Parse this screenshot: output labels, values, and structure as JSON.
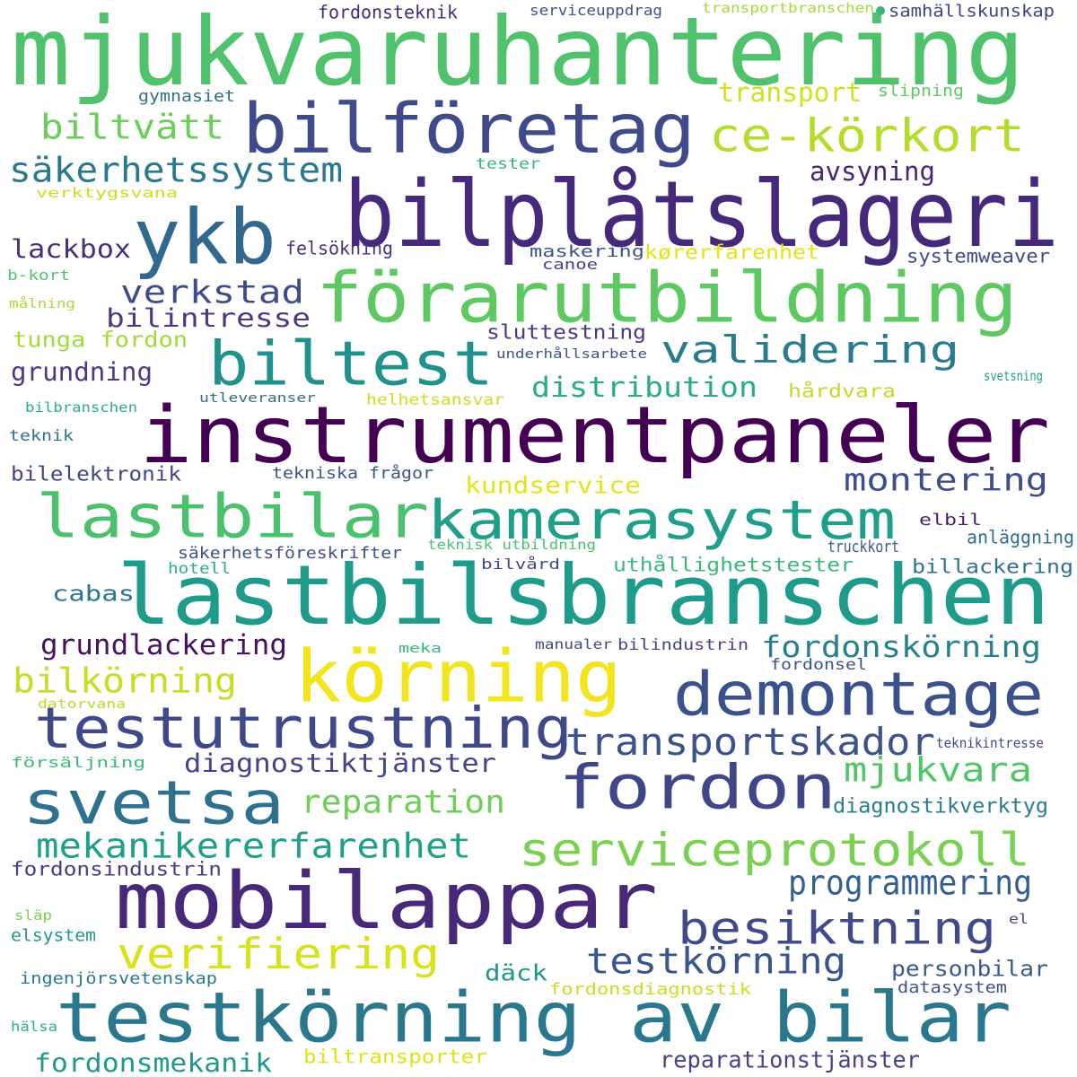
{
  "cloud": {
    "words": [
      {
        "text": "mjukvaruhantering",
        "color": "#4fc26b"
      },
      {
        "text": "bilföretag",
        "color": "#3e4a89"
      },
      {
        "text": "bilplåtslageri",
        "color": "#46297b"
      },
      {
        "text": "ykb",
        "color": "#31688e"
      },
      {
        "text": "ce-körkort",
        "color": "#b4dd2b"
      },
      {
        "text": "förarutbildning",
        "color": "#5ec962"
      },
      {
        "text": "biltest",
        "color": "#21918c"
      },
      {
        "text": "instrumentpaneler",
        "color": "#440154"
      },
      {
        "text": "lastbilar",
        "color": "#4ac16d"
      },
      {
        "text": "kamerasystem",
        "color": "#1f9e89"
      },
      {
        "text": "lastbilsbranschen",
        "color": "#1e9b8a"
      },
      {
        "text": "körning",
        "color": "#f1e51d"
      },
      {
        "text": "demontage",
        "color": "#3b518b"
      },
      {
        "text": "testutrustning",
        "color": "#3e4989"
      },
      {
        "text": "svetsa",
        "color": "#2d718e"
      },
      {
        "text": "fordon",
        "color": "#3f4788"
      },
      {
        "text": "mobilappar",
        "color": "#482878"
      },
      {
        "text": "serviceprotokoll",
        "color": "#7ad151"
      },
      {
        "text": "testkörning av bilar",
        "color": "#2a788e"
      },
      {
        "text": "transportskador",
        "color": "#3b528b"
      },
      {
        "text": "besiktning",
        "color": "#3e4a89"
      },
      {
        "text": "verifiering",
        "color": "#d8e219"
      },
      {
        "text": "säkerhetssystem",
        "color": "#2a788e"
      },
      {
        "text": "verkstad",
        "color": "#3e4c8a"
      },
      {
        "text": "biltvätt",
        "color": "#6ccd5a"
      },
      {
        "text": "validering",
        "color": "#287c8e"
      },
      {
        "text": "montering",
        "color": "#3d4e8a"
      },
      {
        "text": "reparation",
        "color": "#6ece58"
      },
      {
        "text": "mekanikererfarenhet",
        "color": "#1fa088"
      },
      {
        "text": "mjukvara",
        "color": "#52c569"
      },
      {
        "text": "testkörning",
        "color": "#39558c"
      },
      {
        "text": "programmering",
        "color": "#35608d"
      },
      {
        "text": "bilkörning",
        "color": "#c2df23"
      },
      {
        "text": "fordonskörning",
        "color": "#26818e"
      },
      {
        "text": "grundlackering",
        "color": "#471063"
      },
      {
        "text": "diagnostiktjänster",
        "color": "#404688"
      },
      {
        "text": "distribution",
        "color": "#27ad81"
      },
      {
        "text": "transport",
        "color": "#d0e11c"
      },
      {
        "text": "avsyning",
        "color": "#482677"
      },
      {
        "text": "lackbox",
        "color": "#472d7b"
      },
      {
        "text": "bilintresse",
        "color": "#443b84"
      },
      {
        "text": "tunga fordon",
        "color": "#a2da37"
      },
      {
        "text": "grundning",
        "color": "#433e85"
      },
      {
        "text": "sluttestning",
        "color": "#433d84"
      },
      {
        "text": "cabas",
        "color": "#2a768e"
      },
      {
        "text": "kundservice",
        "color": "#e5e419"
      },
      {
        "text": "uthållighetstester",
        "color": "#3aba76"
      },
      {
        "text": "billackering",
        "color": "#2c738e"
      },
      {
        "text": "diagnostikverktyg",
        "color": "#287d8e"
      },
      {
        "text": "fordonsindustrin",
        "color": "#424086"
      },
      {
        "text": "personbilar",
        "color": "#365d8d"
      },
      {
        "text": "däck",
        "color": "#1f968b"
      },
      {
        "text": "fordonsmekanik",
        "color": "#1f998a"
      },
      {
        "text": "biltransporter",
        "color": "#dde318"
      },
      {
        "text": "reparationstjänster",
        "color": "#414487"
      },
      {
        "text": "bilelektronik",
        "color": "#3f4788"
      },
      {
        "text": "hårdvara",
        "color": "#bade28"
      },
      {
        "text": "kørerfarenhet",
        "color": "#e2e418"
      },
      {
        "text": "systemweaver",
        "color": "#3e4c8a"
      },
      {
        "text": "fordonsteknik",
        "color": "#472c7a"
      },
      {
        "text": "serviceuppdrag",
        "color": "#3b528b"
      },
      {
        "text": "transportbranschen",
        "color": "#a5db36"
      },
      {
        "text": "samhällskunskap",
        "color": "#3f4788"
      },
      {
        "text": "gymnasiet",
        "color": "#2c728e"
      },
      {
        "text": "slipning",
        "color": "#5ec962"
      },
      {
        "text": "tester",
        "color": "#35b779"
      },
      {
        "text": "verktygsvana",
        "color": "#c5e021"
      },
      {
        "text": "felsökning",
        "color": "#46337f"
      },
      {
        "text": "maskering",
        "color": "#3b528b"
      },
      {
        "text": "canoe",
        "color": "#404588"
      },
      {
        "text": "b-kort",
        "color": "#50c46a"
      },
      {
        "text": "målning",
        "color": "#a8db34"
      },
      {
        "text": "underhållsarbete",
        "color": "#3b528b"
      },
      {
        "text": "helhetsansvar",
        "color": "#c8e020"
      },
      {
        "text": "utleveranser",
        "color": "#2e6e8e"
      },
      {
        "text": "svetsning",
        "color": "#20a386"
      },
      {
        "text": "bilbranschen",
        "color": "#2ab07f"
      },
      {
        "text": "teknik",
        "color": "#2a768e"
      },
      {
        "text": "tekniska frågor",
        "color": "#39568c"
      },
      {
        "text": "elbil",
        "color": "#481f70"
      },
      {
        "text": "anläggning",
        "color": "#2e6f8e"
      },
      {
        "text": "säkerhetsföreskrifter",
        "color": "#3b528b"
      },
      {
        "text": "teknisk utbildning",
        "color": "#4ac16d"
      },
      {
        "text": "truckkort",
        "color": "#365c8d"
      },
      {
        "text": "hotell",
        "color": "#2db27d"
      },
      {
        "text": "bilvård",
        "color": "#3e4989"
      },
      {
        "text": "meka",
        "color": "#35b779"
      },
      {
        "text": "manualer",
        "color": "#3f4889"
      },
      {
        "text": "bilindustrin",
        "color": "#3f4788"
      },
      {
        "text": "fordonsel",
        "color": "#3a538b"
      },
      {
        "text": "datorvana",
        "color": "#b2dd2d"
      },
      {
        "text": "teknikintresse",
        "color": "#3e4989"
      },
      {
        "text": "försäljning",
        "color": "#3aba76"
      },
      {
        "text": "släp",
        "color": "#7ad151"
      },
      {
        "text": "el",
        "color": "#3e4989"
      },
      {
        "text": "elsystem",
        "color": "#1f978b"
      },
      {
        "text": "ingenjörsvetenskap",
        "color": "#29798e"
      },
      {
        "text": "fordonsdiagnostik",
        "color": "#c2df23"
      },
      {
        "text": "datasystem",
        "color": "#3b528b"
      },
      {
        "text": "hälsa",
        "color": "#2ab07f"
      }
    ],
    "dot_color": "#35b779"
  }
}
